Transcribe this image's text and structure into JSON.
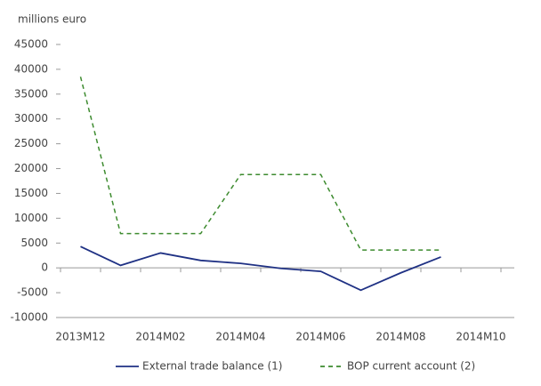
{
  "chart_data": {
    "type": "line",
    "y_axis_label": "millions euro",
    "categories": [
      "2013M12",
      null,
      "2014M02",
      null,
      "2014M04",
      null,
      "2014M06",
      null,
      "2014M08",
      null,
      "2014M10"
    ],
    "series": [
      {
        "name": "External trade balance (1)",
        "color": "#1f3184",
        "dash": "solid",
        "values": [
          4300,
          500,
          3000,
          1500,
          900,
          -100,
          -700,
          -4500,
          -1000,
          2200,
          null
        ]
      },
      {
        "name": "BOP current account (2)",
        "color": "#3d8b2f",
        "dash": "dashed",
        "values": [
          38500,
          6900,
          6900,
          6900,
          18800,
          18800,
          18800,
          3600,
          3600,
          3600,
          null
        ]
      }
    ],
    "ylim": [
      -10000,
      45000
    ],
    "yticks": [
      -10000,
      -5000,
      0,
      5000,
      10000,
      15000,
      20000,
      25000,
      30000,
      35000,
      40000,
      45000
    ],
    "grid": false,
    "legend": "bottom"
  }
}
